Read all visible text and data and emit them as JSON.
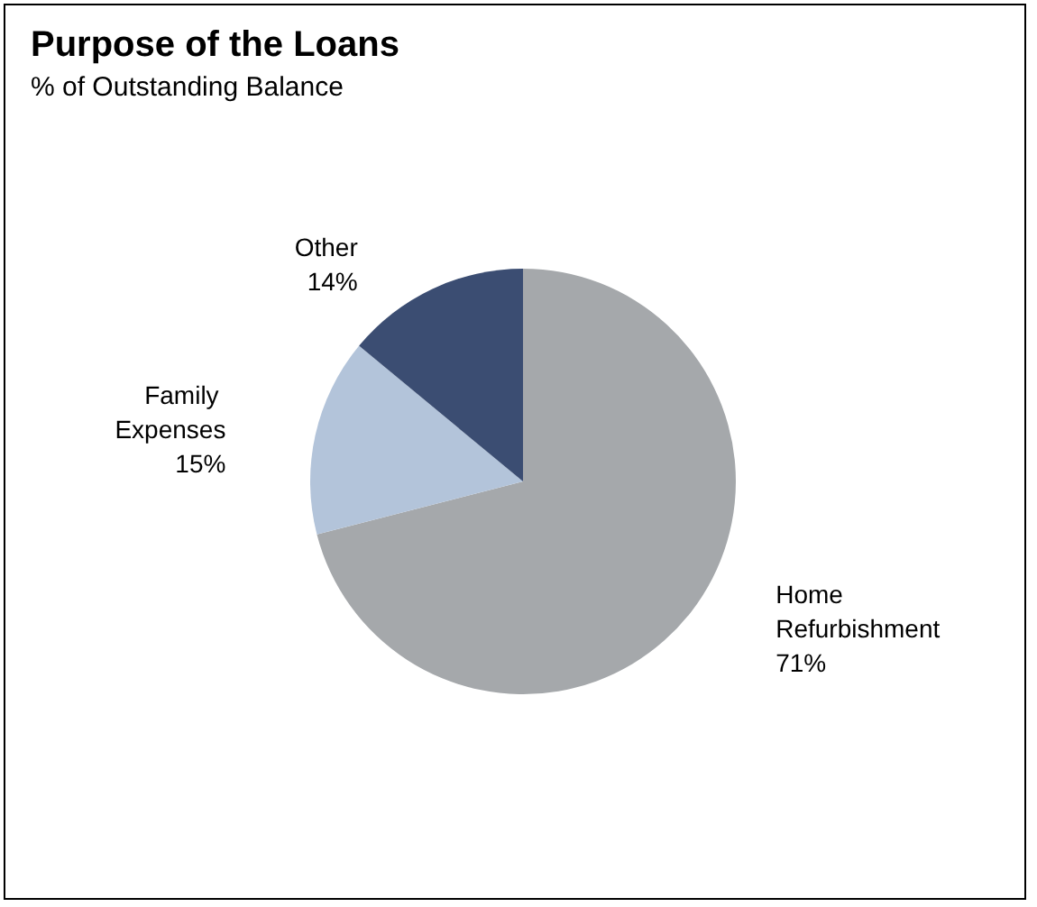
{
  "chart_data": {
    "type": "pie",
    "title": "Purpose of the Loans",
    "subtitle": "% of Outstanding Balance",
    "categories": [
      "Home Refurbishment",
      "Family Expenses",
      "Other"
    ],
    "values": [
      71,
      15,
      14
    ],
    "colors": [
      "#a5a8ab",
      "#b3c4da",
      "#3b4d72"
    ],
    "value_labels": [
      "71%",
      "15%",
      "14%"
    ],
    "legend": false
  }
}
